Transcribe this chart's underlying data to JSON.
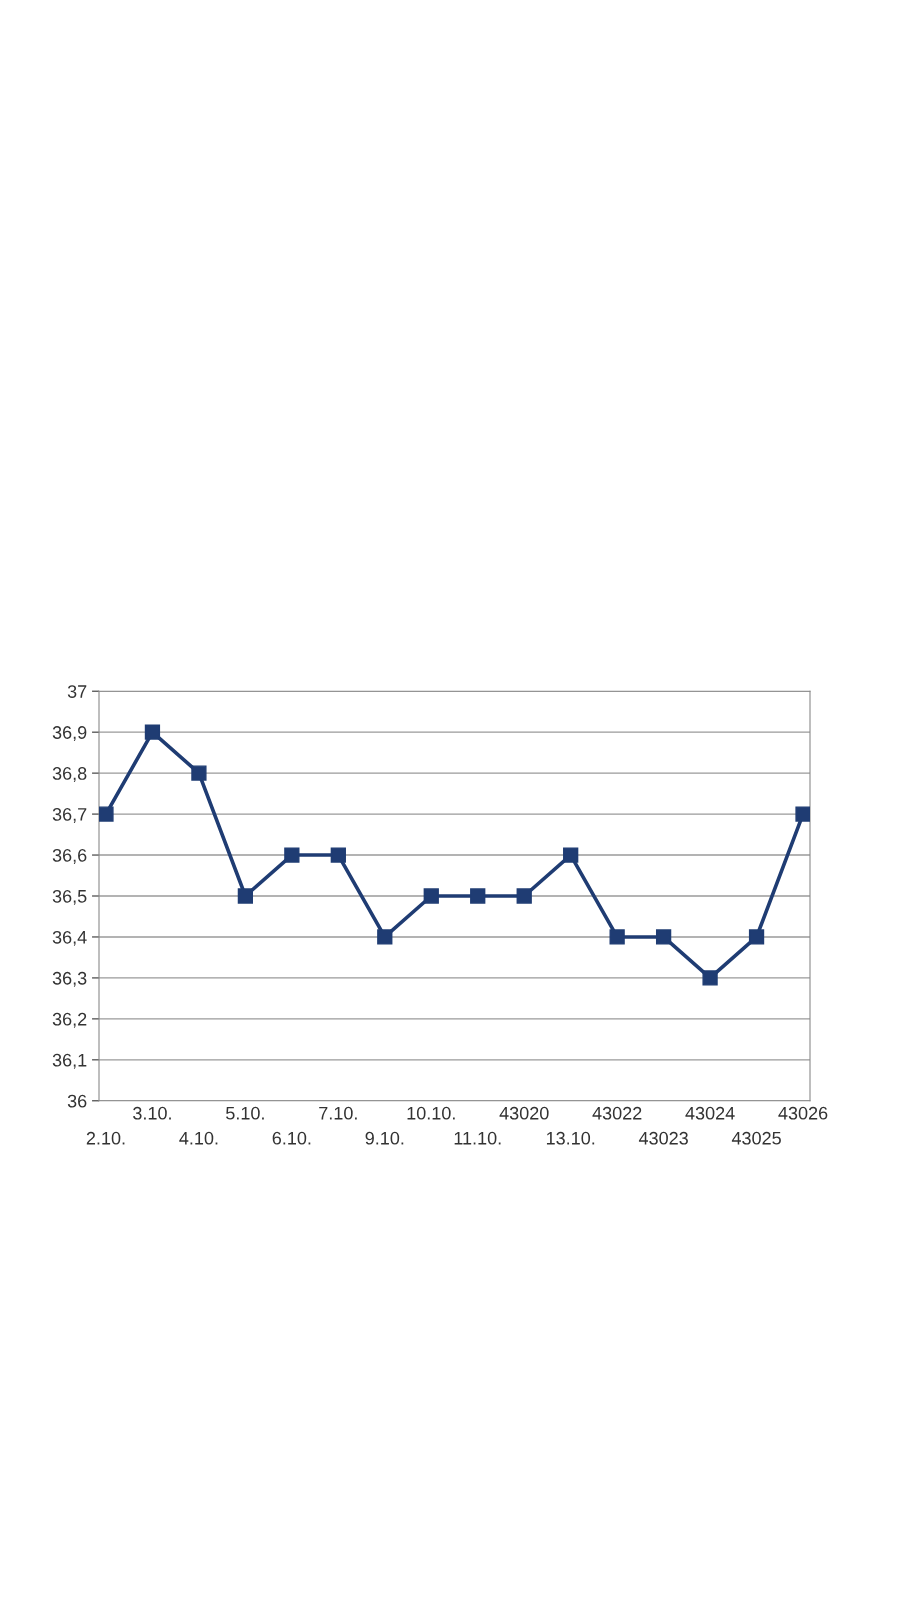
{
  "chart_data": {
    "type": "line",
    "categories": [
      "2.10.",
      "3.10.",
      "4.10.",
      "5.10.",
      "6.10.",
      "7.10.",
      "9.10.",
      "10.10.",
      "11.10.",
      "43020",
      "13.10.",
      "43022",
      "43023",
      "43024",
      "43025",
      "43026"
    ],
    "series": [
      {
        "color": "#1f3c73",
        "values": [
          36.7,
          36.9,
          36.8,
          36.5,
          36.6,
          36.6,
          36.4,
          36.5,
          36.5,
          36.5,
          36.6,
          36.4,
          36.4,
          36.3,
          36.4,
          36.7
        ]
      }
    ],
    "ylim": [
      36,
      37
    ],
    "yticks": [
      36,
      {
        "value": 36.1,
        "label": "36,1"
      },
      {
        "value": 36.2,
        "label": "36,2"
      },
      {
        "value": 36.3,
        "label": "36,3"
      },
      {
        "value": 36.4,
        "label": "36,4"
      },
      {
        "value": 36.5,
        "label": "36,5"
      },
      {
        "value": 36.6,
        "label": "36,6"
      },
      {
        "value": 36.7,
        "label": "36,7"
      },
      {
        "value": 36.8,
        "label": "36,8"
      },
      {
        "value": 36.9,
        "label": "36,9"
      },
      37
    ],
    "grid": "y",
    "marker": "square",
    "line_style": "solid"
  }
}
